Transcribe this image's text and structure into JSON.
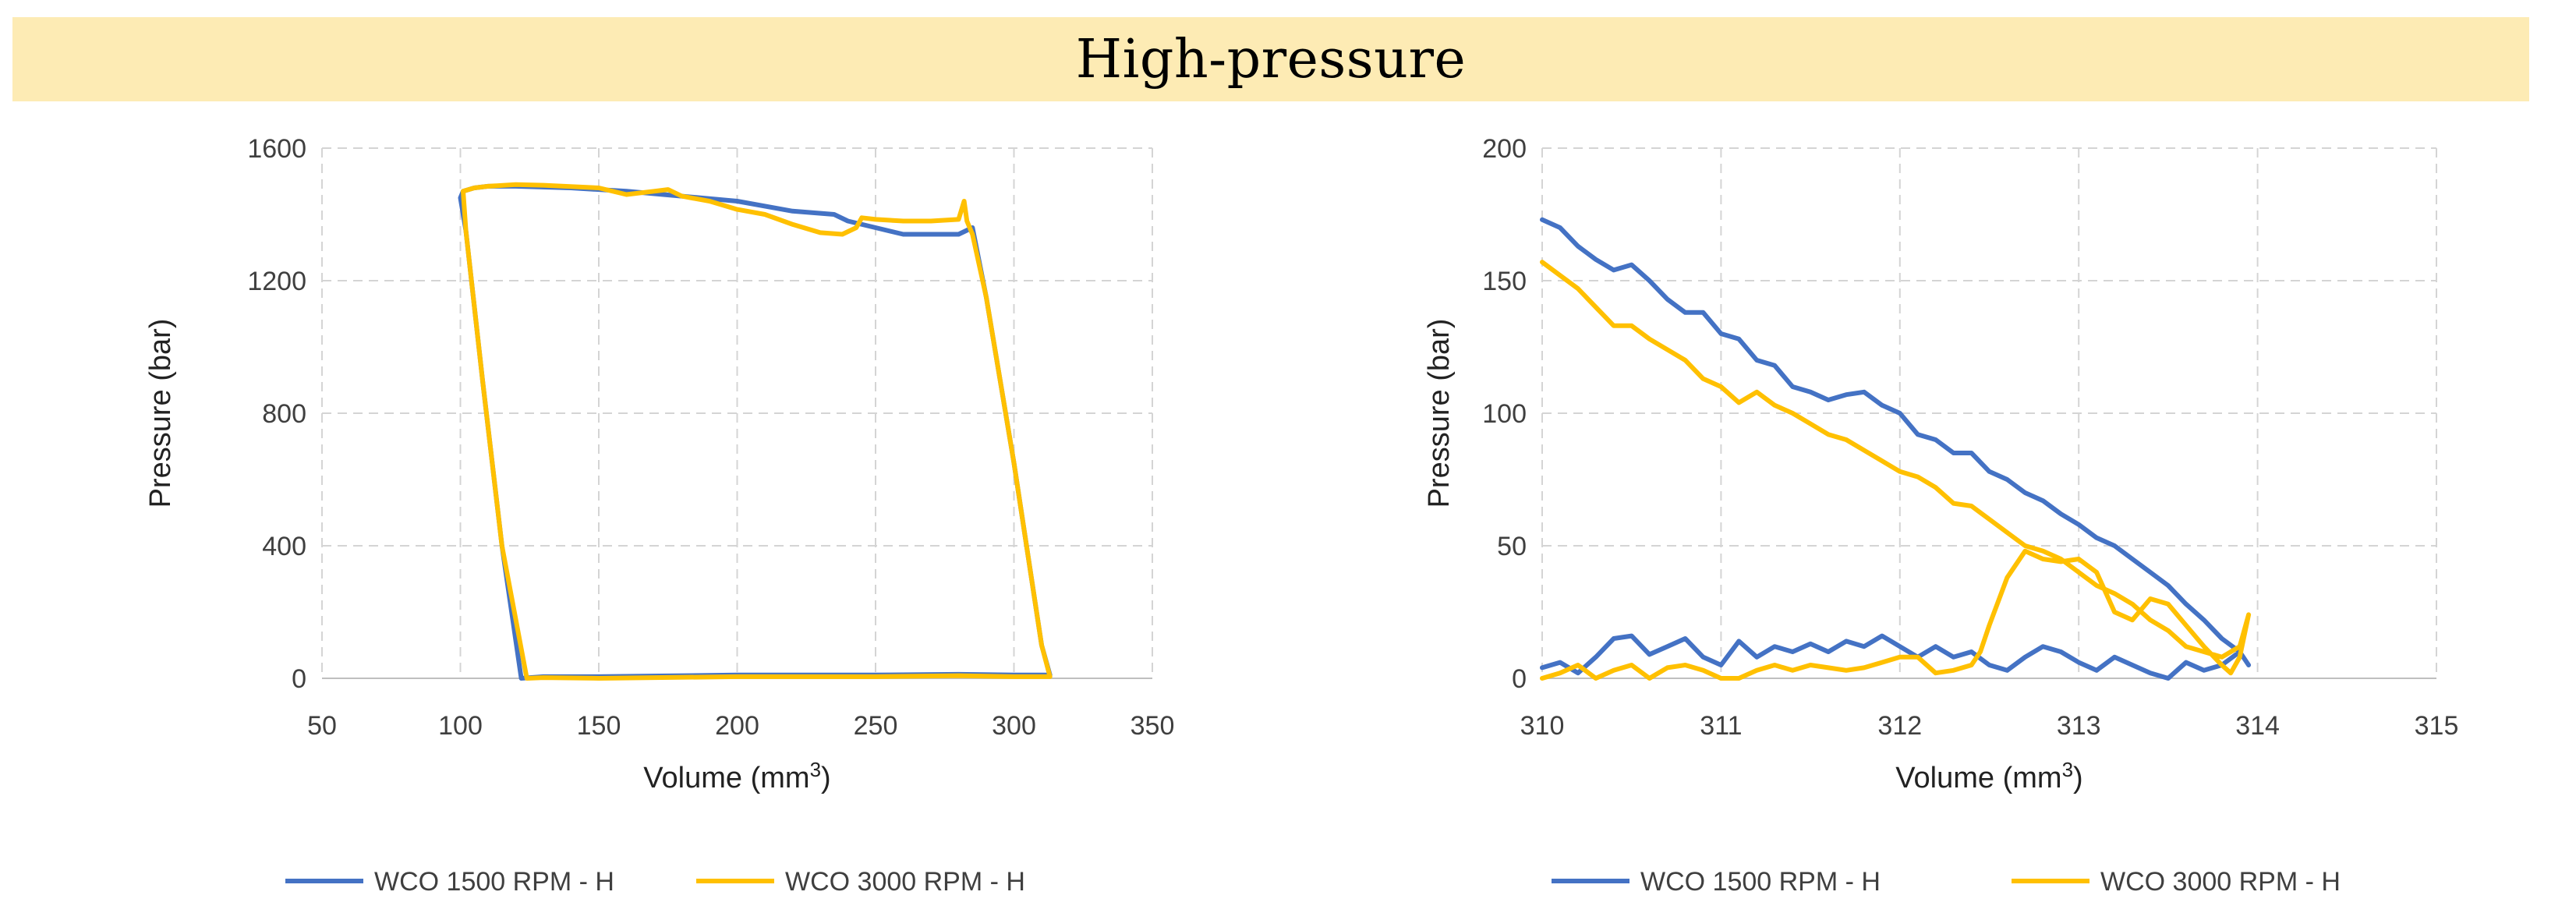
{
  "banner": {
    "title": "High-pressure"
  },
  "colors": {
    "series1": "#4472c4",
    "series2": "#ffc000",
    "banner": "#fdebb4"
  },
  "chart_data": [
    {
      "type": "line",
      "title": "",
      "xlabel": "Volume (mm",
      "xlabel_sup": "3",
      "xlabel_suffix": ")",
      "ylabel": "Pressure (bar)",
      "xlim": [
        50,
        350
      ],
      "ylim": [
        0,
        1600
      ],
      "xticks": [
        50,
        100,
        150,
        200,
        250,
        300,
        350
      ],
      "yticks": [
        0,
        400,
        800,
        1200,
        1600
      ],
      "grid": true,
      "legend_position": "bottom",
      "series": [
        {
          "name": "WCO 1500 RPM - H",
          "color": "#4472c4",
          "x": [
            100,
            101,
            105,
            110,
            120,
            140,
            160,
            180,
            200,
            220,
            235,
            240,
            250,
            260,
            270,
            280,
            285,
            290,
            300,
            310,
            313,
            300,
            280,
            250,
            200,
            150,
            130,
            122,
            115,
            108,
            102,
            100
          ],
          "y": [
            1450,
            1470,
            1480,
            1485,
            1485,
            1480,
            1470,
            1455,
            1440,
            1410,
            1400,
            1380,
            1360,
            1340,
            1340,
            1340,
            1360,
            1150,
            650,
            100,
            10,
            10,
            12,
            10,
            10,
            5,
            5,
            0,
            400,
            900,
            1350,
            1450
          ]
        },
        {
          "name": "WCO 3000 RPM - H",
          "color": "#ffc000",
          "x": [
            101,
            105,
            110,
            120,
            130,
            150,
            160,
            170,
            175,
            180,
            190,
            200,
            210,
            220,
            230,
            238,
            243,
            245,
            250,
            260,
            270,
            280,
            282,
            283,
            285,
            290,
            300,
            310,
            313,
            300,
            280,
            250,
            200,
            150,
            130,
            124,
            115,
            108,
            102,
            101
          ],
          "y": [
            1470,
            1480,
            1485,
            1490,
            1488,
            1480,
            1460,
            1470,
            1475,
            1455,
            1440,
            1415,
            1400,
            1370,
            1345,
            1340,
            1360,
            1390,
            1385,
            1380,
            1380,
            1385,
            1440,
            1380,
            1340,
            1150,
            650,
            100,
            5,
            5,
            8,
            5,
            5,
            0,
            2,
            0,
            400,
            900,
            1350,
            1470
          ]
        }
      ]
    },
    {
      "type": "line",
      "title": "",
      "xlabel": "Volume (mm",
      "xlabel_sup": "3",
      "xlabel_suffix": ")",
      "ylabel": "Pressure (bar)",
      "xlim": [
        310,
        315
      ],
      "ylim": [
        0,
        200
      ],
      "xticks": [
        310,
        311,
        312,
        313,
        314,
        315
      ],
      "yticks": [
        0,
        50,
        100,
        150,
        200
      ],
      "grid": true,
      "legend_position": "bottom",
      "series": [
        {
          "name": "WCO 1500 RPM - H",
          "color": "#4472c4",
          "x": [
            310.0,
            310.1,
            310.2,
            310.3,
            310.4,
            310.5,
            310.6,
            310.7,
            310.8,
            310.9,
            311.0,
            311.1,
            311.2,
            311.3,
            311.4,
            311.5,
            311.6,
            311.7,
            311.8,
            311.9,
            312.0,
            312.1,
            312.2,
            312.3,
            312.4,
            312.5,
            312.6,
            312.7,
            312.8,
            312.9,
            313.0,
            313.1,
            313.2,
            313.3,
            313.4,
            313.5,
            313.6,
            313.7,
            313.8,
            313.9,
            313.95,
            313.9,
            313.8,
            313.7,
            313.6,
            313.5,
            313.4,
            313.3,
            313.2,
            313.1,
            313.0,
            312.9,
            312.8,
            312.7,
            312.6,
            312.5,
            312.4,
            312.3,
            312.2,
            312.1,
            312.0,
            311.9,
            311.8,
            311.7,
            311.6,
            311.5,
            311.4,
            311.3,
            311.2,
            311.1,
            311.0,
            310.9,
            310.8,
            310.7,
            310.6,
            310.5,
            310.4,
            310.3,
            310.2,
            310.1,
            310.0
          ],
          "y": [
            173,
            170,
            163,
            158,
            154,
            156,
            150,
            143,
            138,
            138,
            130,
            128,
            120,
            118,
            110,
            108,
            105,
            107,
            108,
            103,
            100,
            92,
            90,
            85,
            85,
            78,
            75,
            70,
            67,
            62,
            58,
            53,
            50,
            45,
            40,
            35,
            28,
            22,
            15,
            10,
            5,
            10,
            5,
            3,
            6,
            0,
            2,
            5,
            8,
            3,
            6,
            10,
            12,
            8,
            3,
            5,
            10,
            8,
            12,
            8,
            12,
            16,
            12,
            14,
            10,
            13,
            10,
            12,
            8,
            14,
            5,
            8,
            15,
            12,
            9,
            16,
            15,
            8,
            2,
            6,
            4
          ]
        },
        {
          "name": "WCO 3000 RPM - H",
          "color": "#ffc000",
          "x": [
            310.0,
            310.1,
            310.2,
            310.3,
            310.4,
            310.5,
            310.6,
            310.7,
            310.8,
            310.9,
            311.0,
            311.1,
            311.2,
            311.3,
            311.4,
            311.5,
            311.6,
            311.7,
            311.8,
            311.9,
            312.0,
            312.1,
            312.2,
            312.3,
            312.4,
            312.5,
            312.6,
            312.7,
            312.8,
            312.9,
            313.0,
            313.1,
            313.2,
            313.3,
            313.4,
            313.5,
            313.6,
            313.7,
            313.8,
            313.9,
            313.95,
            313.9,
            313.85,
            313.8,
            313.7,
            313.6,
            313.5,
            313.4,
            313.3,
            313.2,
            313.1,
            313.0,
            312.9,
            312.8,
            312.7,
            312.6,
            312.5,
            312.45,
            312.4,
            312.3,
            312.2,
            312.1,
            312.0,
            311.9,
            311.8,
            311.7,
            311.6,
            311.5,
            311.4,
            311.3,
            311.2,
            311.1,
            311.0,
            310.9,
            310.8,
            310.7,
            310.6,
            310.5,
            310.4,
            310.3,
            310.2,
            310.1,
            310.0
          ],
          "y": [
            157,
            152,
            147,
            140,
            133,
            133,
            128,
            124,
            120,
            113,
            110,
            104,
            108,
            103,
            100,
            96,
            92,
            90,
            86,
            82,
            78,
            76,
            72,
            66,
            65,
            60,
            55,
            50,
            48,
            45,
            40,
            35,
            32,
            28,
            22,
            18,
            12,
            10,
            8,
            12,
            24,
            8,
            2,
            5,
            12,
            20,
            28,
            30,
            22,
            25,
            40,
            45,
            44,
            45,
            48,
            38,
            20,
            10,
            5,
            3,
            2,
            8,
            8,
            6,
            4,
            3,
            4,
            5,
            3,
            5,
            3,
            0,
            0,
            3,
            5,
            4,
            0,
            5,
            3,
            0,
            5,
            2,
            0
          ]
        }
      ]
    }
  ]
}
